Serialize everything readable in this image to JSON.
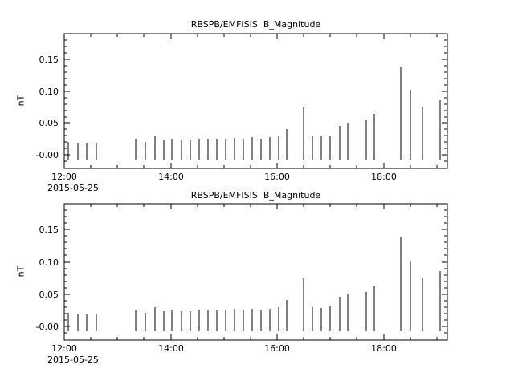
{
  "window": {
    "background": "#ffffff",
    "foreground": "#000000"
  },
  "chart_data": [
    {
      "type": "bar",
      "title": "RBSPB/EMFISIS  B_Magnitude",
      "ylabel": "nT",
      "date_label": "2015-05-25",
      "xlim": [
        12.0,
        19.2
      ],
      "ylim": [
        -0.021,
        0.19
      ],
      "grid": false,
      "legend": "none",
      "x_ticks": [
        {
          "value": 12,
          "label": "12:00"
        },
        {
          "value": 14,
          "label": "14:00"
        },
        {
          "value": 16,
          "label": "16:00"
        },
        {
          "value": 18,
          "label": "18:00"
        }
      ],
      "x_minor_step": 0.5,
      "y_ticks": [
        {
          "value": 0.0,
          "label": "-0.00"
        },
        {
          "value": 0.05,
          "label": "0.05"
        },
        {
          "value": 0.1,
          "label": "0.10"
        },
        {
          "value": 0.15,
          "label": "0.15"
        }
      ],
      "y_minor_step": 0.01,
      "spike_baseline": -0.007,
      "series": [
        {
          "name": "B_Magnitude",
          "points": [
            [
              12.08,
              0.021
            ],
            [
              12.25,
              0.019
            ],
            [
              12.43,
              0.019
            ],
            [
              12.6,
              0.019
            ],
            [
              13.35,
              0.026
            ],
            [
              13.52,
              0.021
            ],
            [
              13.7,
              0.03
            ],
            [
              13.87,
              0.024
            ],
            [
              14.03,
              0.026
            ],
            [
              14.2,
              0.024
            ],
            [
              14.37,
              0.024
            ],
            [
              14.53,
              0.026
            ],
            [
              14.7,
              0.026
            ],
            [
              14.87,
              0.026
            ],
            [
              15.03,
              0.026
            ],
            [
              15.2,
              0.027
            ],
            [
              15.37,
              0.026
            ],
            [
              15.53,
              0.028
            ],
            [
              15.7,
              0.026
            ],
            [
              15.87,
              0.028
            ],
            [
              16.03,
              0.03
            ],
            [
              16.18,
              0.041
            ],
            [
              16.5,
              0.075
            ],
            [
              16.67,
              0.03
            ],
            [
              16.83,
              0.029
            ],
            [
              17.0,
              0.031
            ],
            [
              17.17,
              0.046
            ],
            [
              17.33,
              0.05
            ],
            [
              17.67,
              0.054
            ],
            [
              17.83,
              0.064
            ],
            [
              18.33,
              0.138
            ],
            [
              18.5,
              0.102
            ],
            [
              18.73,
              0.076
            ],
            [
              19.07,
              0.086
            ]
          ]
        }
      ]
    },
    {
      "type": "bar",
      "title": "RBSPB/EMFISIS  B_Magnitude",
      "ylabel": "nT",
      "date_label": "2015-05-25",
      "xlim": [
        12.0,
        19.2
      ],
      "ylim": [
        -0.021,
        0.19
      ],
      "grid": false,
      "legend": "none",
      "x_ticks": [
        {
          "value": 12,
          "label": "12:00"
        },
        {
          "value": 14,
          "label": "14:00"
        },
        {
          "value": 16,
          "label": "16:00"
        },
        {
          "value": 18,
          "label": "18:00"
        }
      ],
      "x_minor_step": 0.5,
      "y_ticks": [
        {
          "value": 0.0,
          "label": "-0.00"
        },
        {
          "value": 0.05,
          "label": "0.05"
        },
        {
          "value": 0.1,
          "label": "0.10"
        },
        {
          "value": 0.15,
          "label": "0.15"
        }
      ],
      "y_minor_step": 0.01,
      "spike_baseline": -0.007,
      "series": [
        {
          "name": "B_Magnitude",
          "points": [
            [
              12.08,
              0.021
            ],
            [
              12.25,
              0.019
            ],
            [
              12.43,
              0.019
            ],
            [
              12.6,
              0.019
            ],
            [
              13.35,
              0.026
            ],
            [
              13.52,
              0.021
            ],
            [
              13.7,
              0.03
            ],
            [
              13.87,
              0.024
            ],
            [
              14.03,
              0.026
            ],
            [
              14.2,
              0.024
            ],
            [
              14.37,
              0.024
            ],
            [
              14.53,
              0.026
            ],
            [
              14.7,
              0.026
            ],
            [
              14.87,
              0.026
            ],
            [
              15.03,
              0.026
            ],
            [
              15.2,
              0.027
            ],
            [
              15.37,
              0.026
            ],
            [
              15.53,
              0.028
            ],
            [
              15.7,
              0.026
            ],
            [
              15.87,
              0.028
            ],
            [
              16.03,
              0.03
            ],
            [
              16.18,
              0.041
            ],
            [
              16.5,
              0.075
            ],
            [
              16.67,
              0.03
            ],
            [
              16.83,
              0.029
            ],
            [
              17.0,
              0.031
            ],
            [
              17.17,
              0.046
            ],
            [
              17.33,
              0.05
            ],
            [
              17.67,
              0.054
            ],
            [
              17.83,
              0.064
            ],
            [
              18.33,
              0.138
            ],
            [
              18.5,
              0.102
            ],
            [
              18.73,
              0.076
            ],
            [
              19.07,
              0.086
            ]
          ]
        }
      ]
    }
  ]
}
